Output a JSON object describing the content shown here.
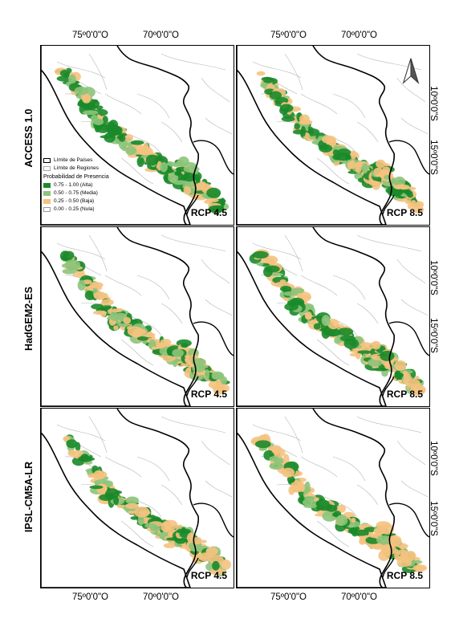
{
  "top_axis": [
    "75º0'0\"O",
    "70º0'0\"O"
  ],
  "bottom_axis": [
    "75º0'0\"O",
    "70º0'0\"O"
  ],
  "right_axis": [
    "10º0'0\"S",
    "15º0'0\"S"
  ],
  "rows": [
    {
      "model": "ACCESS 1.0",
      "scenarios": [
        "RCP 4.5",
        "RCP 8.5"
      ]
    },
    {
      "model": "HadGEM2-ES",
      "scenarios": [
        "RCP 4.5",
        "RCP 8.5"
      ]
    },
    {
      "model": "IPSL-CM5A-LR",
      "scenarios": [
        "RCP 4.5",
        "RCP 8.5"
      ]
    }
  ],
  "legend": {
    "countries": "Límite de Países",
    "regions": "Límite de Regiones",
    "title": "Probabilidad de Presencia",
    "classes": [
      {
        "label": "0.75 - 1.00 (Alta)",
        "color": "#1a8a2a"
      },
      {
        "label": "0.50 - 0.75 (Media)",
        "color": "#8cc47a"
      },
      {
        "label": "0.25 - 0.50 (Baja)",
        "color": "#f5c27f"
      },
      {
        "label": "0.00 - 0.25 (Nula)",
        "color": "#ffffff"
      }
    ]
  },
  "north_arrow": "north-arrow-icon"
}
